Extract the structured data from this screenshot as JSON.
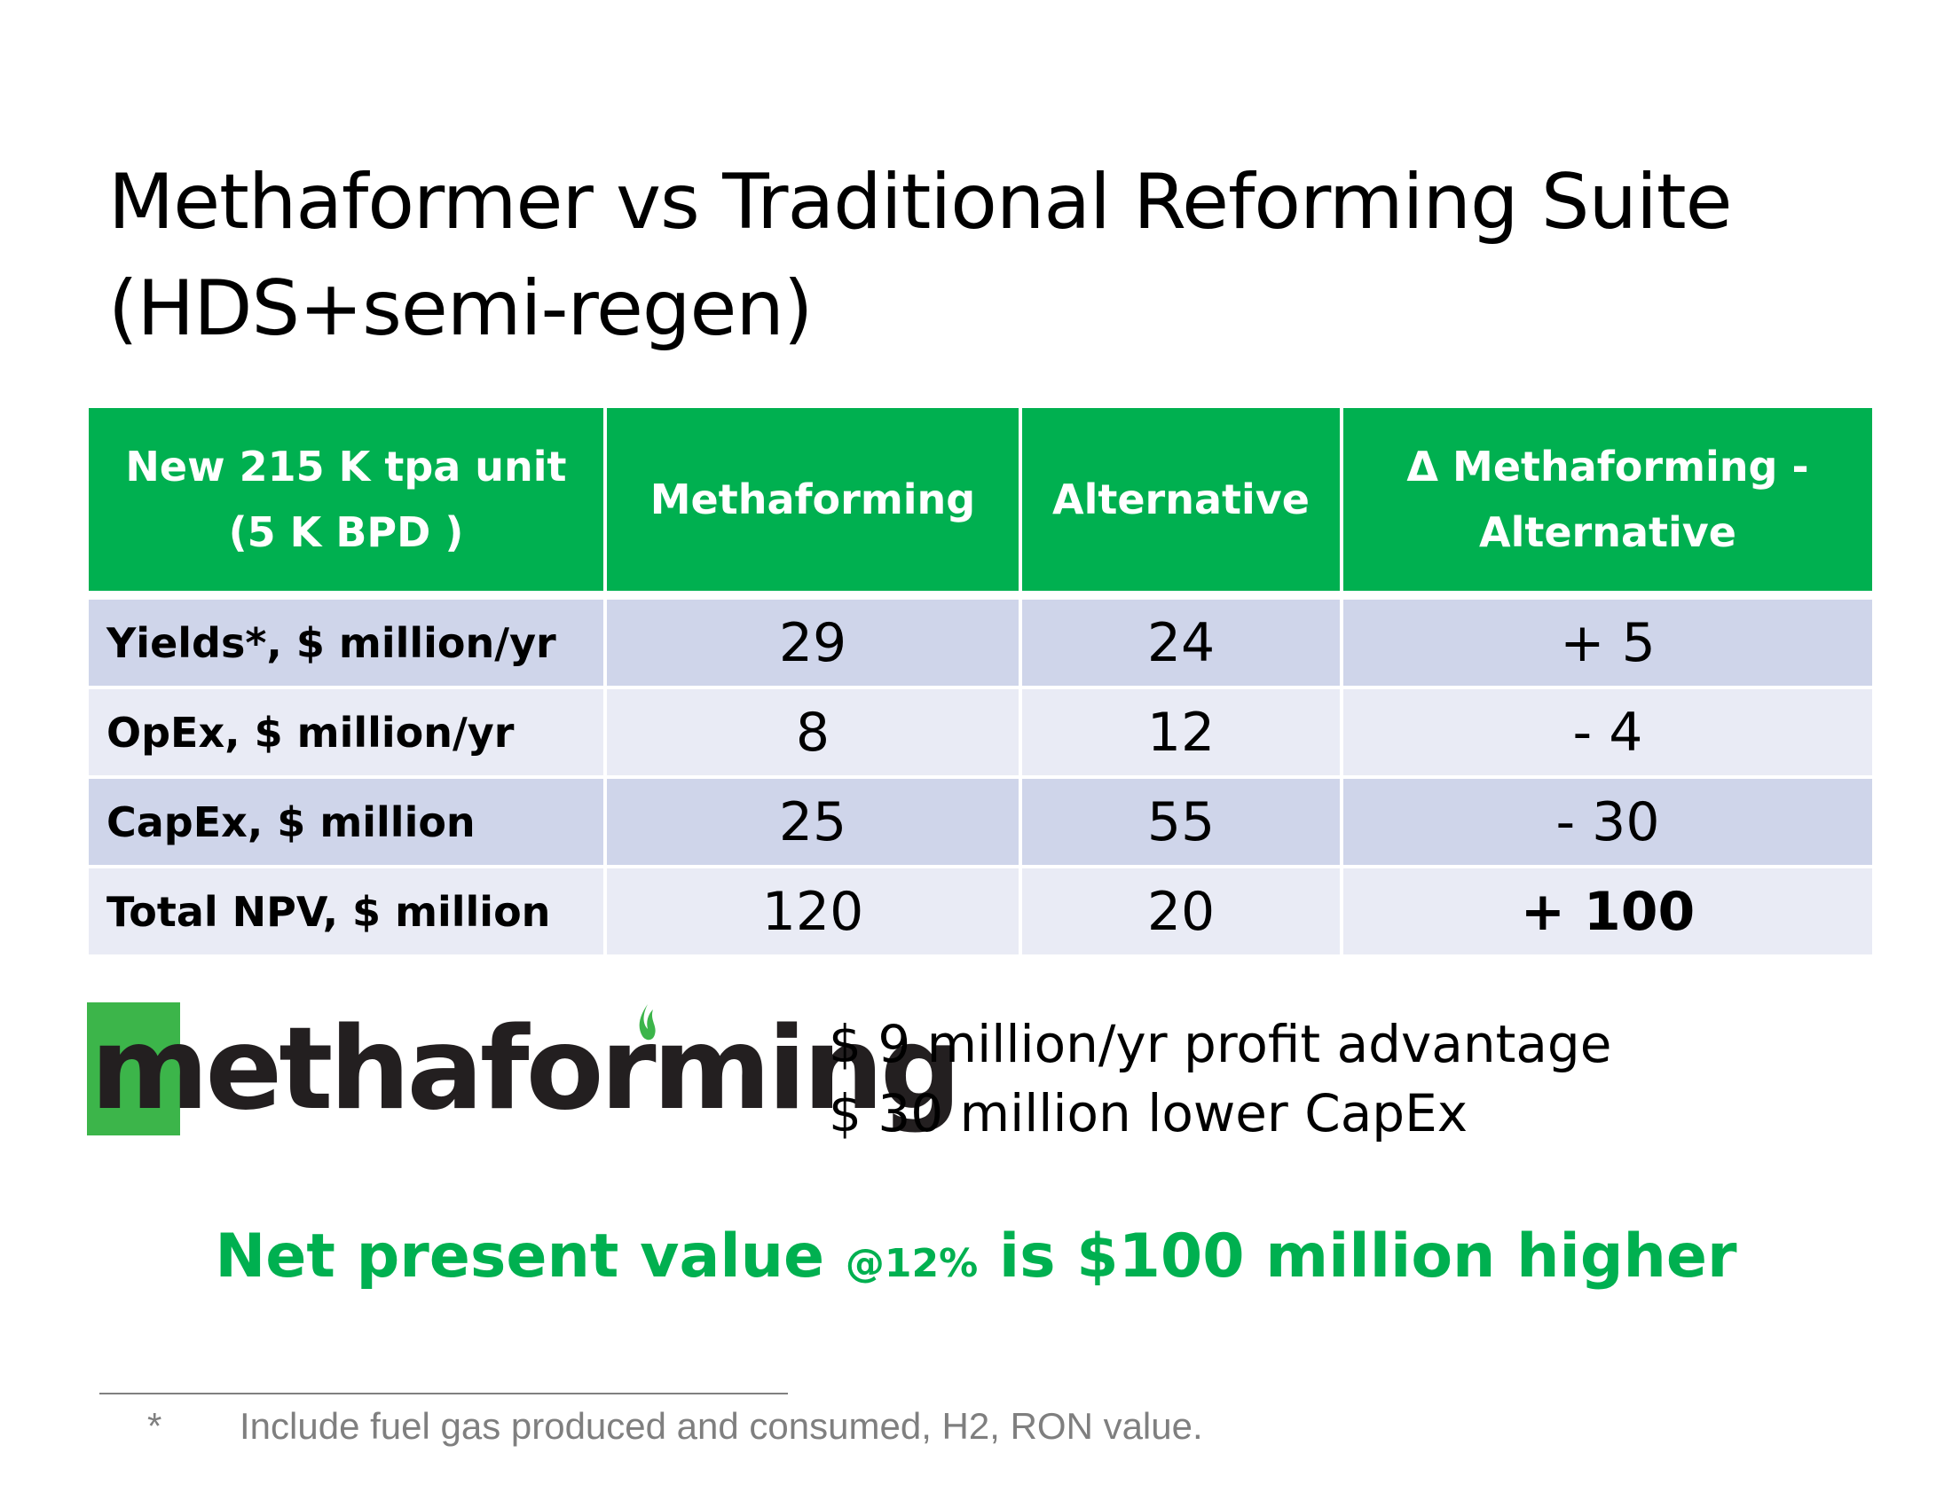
{
  "title": {
    "line1": "Methaformer vs Traditional Reforming Suite",
    "line2": "(HDS+semi-regen)"
  },
  "table": {
    "headers": [
      {
        "line1": "New 215 K tpa unit",
        "line2": "(5 K BPD )"
      },
      {
        "line1": "Methaforming",
        "line2": ""
      },
      {
        "line1": "Alternative",
        "line2": ""
      },
      {
        "line1": "Δ Methaforming -",
        "line2": "Alternative"
      }
    ],
    "rows": [
      {
        "label": "Yields*, $ million/yr",
        "methaforming": "29",
        "alternative": "24",
        "delta": "+ 5"
      },
      {
        "label": "OpEx, $ million/yr",
        "methaforming": "8",
        "alternative": "12",
        "delta": "- 4"
      },
      {
        "label": "CapEx, $ million",
        "methaforming": "25",
        "alternative": "55",
        "delta": "- 30"
      },
      {
        "label": "Total NPV, $ million",
        "methaforming": "120",
        "alternative": "20",
        "delta": "+ 100"
      }
    ]
  },
  "logo": {
    "text": "methaforming",
    "square_color": "#3cb54a",
    "flame_color": "#3cb54a",
    "text_color": "#231f20"
  },
  "advantages": {
    "line1": "$ 9 million/yr profit advantage",
    "line2": "$ 30 million lower CapEx"
  },
  "npv_statement": {
    "part1": "Net present value ",
    "rate": "@12%",
    "part2": " is $100 million higher",
    "color": "#00b050"
  },
  "footnote": {
    "marker": "*",
    "text": "Include fuel gas produced and consumed, H2, RON value."
  },
  "colors": {
    "header_bg": "#00b050",
    "row_odd_bg": "#cfd5ea",
    "row_even_bg": "#e9ebf5"
  }
}
